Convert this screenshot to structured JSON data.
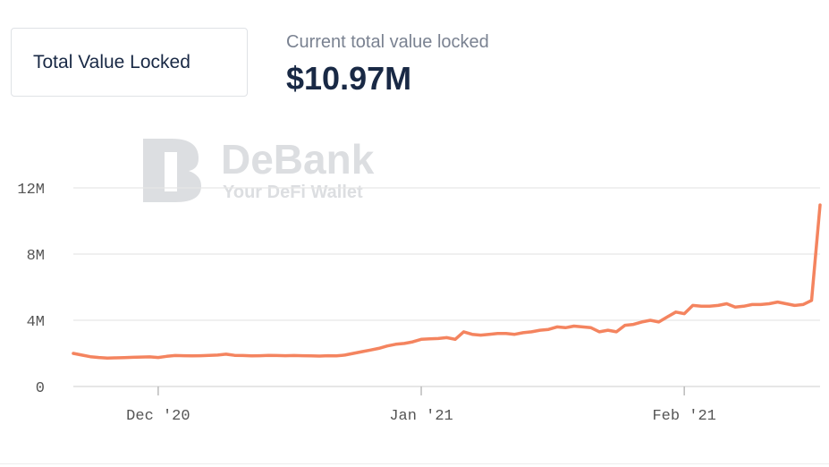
{
  "tab": {
    "label": "Total Value Locked"
  },
  "header": {
    "subtitle": "Current total value locked",
    "value": "$10.97M"
  },
  "watermark": {
    "brand": "DeBank",
    "tagline": "Your DeFi Wallet",
    "logo_icon": "debank-logo-icon",
    "color": "#dcdee1"
  },
  "chart_data": {
    "type": "line",
    "title": "",
    "xlabel": "",
    "ylabel": "",
    "color": "#f4845f",
    "grid": "horizontal",
    "y_ticks": [
      {
        "value": 0,
        "label": "0"
      },
      {
        "value": 4000000,
        "label": "4M"
      },
      {
        "value": 8000000,
        "label": "8M"
      },
      {
        "value": 12000000,
        "label": "12M"
      }
    ],
    "ylim": [
      0,
      12000000
    ],
    "x_ticks": [
      {
        "date": "2020-12-01",
        "label": "Dec '20"
      },
      {
        "date": "2021-01-01",
        "label": "Jan '21"
      },
      {
        "date": "2021-02-01",
        "label": "Feb '21"
      }
    ],
    "xlim": [
      "2020-11-21",
      "2021-02-17"
    ],
    "series": [
      {
        "values": [
          [
            "2020-11-21",
            2.0
          ],
          [
            "2020-11-22",
            1.9
          ],
          [
            "2020-11-23",
            1.8
          ],
          [
            "2020-11-24",
            1.75
          ],
          [
            "2020-11-25",
            1.72
          ],
          [
            "2020-11-26",
            1.73
          ],
          [
            "2020-11-27",
            1.74
          ],
          [
            "2020-11-28",
            1.76
          ],
          [
            "2020-11-29",
            1.78
          ],
          [
            "2020-11-30",
            1.79
          ],
          [
            "2020-12-01",
            1.75
          ],
          [
            "2020-12-02",
            1.82
          ],
          [
            "2020-12-03",
            1.87
          ],
          [
            "2020-12-04",
            1.86
          ],
          [
            "2020-12-05",
            1.85
          ],
          [
            "2020-12-06",
            1.86
          ],
          [
            "2020-12-07",
            1.88
          ],
          [
            "2020-12-08",
            1.9
          ],
          [
            "2020-12-09",
            1.95
          ],
          [
            "2020-12-10",
            1.88
          ],
          [
            "2020-12-11",
            1.87
          ],
          [
            "2020-12-12",
            1.85
          ],
          [
            "2020-12-13",
            1.86
          ],
          [
            "2020-12-14",
            1.88
          ],
          [
            "2020-12-15",
            1.87
          ],
          [
            "2020-12-16",
            1.86
          ],
          [
            "2020-12-17",
            1.87
          ],
          [
            "2020-12-18",
            1.86
          ],
          [
            "2020-12-19",
            1.85
          ],
          [
            "2020-12-20",
            1.84
          ],
          [
            "2020-12-21",
            1.86
          ],
          [
            "2020-12-22",
            1.85
          ],
          [
            "2020-12-23",
            1.9
          ],
          [
            "2020-12-24",
            2.0
          ],
          [
            "2020-12-25",
            2.1
          ],
          [
            "2020-12-26",
            2.2
          ],
          [
            "2020-12-27",
            2.3
          ],
          [
            "2020-12-28",
            2.45
          ],
          [
            "2020-12-29",
            2.55
          ],
          [
            "2020-12-30",
            2.6
          ],
          [
            "2020-12-31",
            2.7
          ],
          [
            "2021-01-01",
            2.85
          ],
          [
            "2021-01-02",
            2.88
          ],
          [
            "2021-01-03",
            2.9
          ],
          [
            "2021-01-04",
            2.95
          ],
          [
            "2021-01-05",
            2.85
          ],
          [
            "2021-01-06",
            3.3
          ],
          [
            "2021-01-07",
            3.15
          ],
          [
            "2021-01-08",
            3.1
          ],
          [
            "2021-01-09",
            3.15
          ],
          [
            "2021-01-10",
            3.2
          ],
          [
            "2021-01-11",
            3.2
          ],
          [
            "2021-01-12",
            3.15
          ],
          [
            "2021-01-13",
            3.25
          ],
          [
            "2021-01-14",
            3.3
          ],
          [
            "2021-01-15",
            3.4
          ],
          [
            "2021-01-16",
            3.45
          ],
          [
            "2021-01-17",
            3.6
          ],
          [
            "2021-01-18",
            3.55
          ],
          [
            "2021-01-19",
            3.65
          ],
          [
            "2021-01-20",
            3.6
          ],
          [
            "2021-01-21",
            3.55
          ],
          [
            "2021-01-22",
            3.3
          ],
          [
            "2021-01-23",
            3.4
          ],
          [
            "2021-01-24",
            3.3
          ],
          [
            "2021-01-25",
            3.7
          ],
          [
            "2021-01-26",
            3.75
          ],
          [
            "2021-01-27",
            3.9
          ],
          [
            "2021-01-28",
            4.0
          ],
          [
            "2021-01-29",
            3.9
          ],
          [
            "2021-01-30",
            4.2
          ],
          [
            "2021-01-31",
            4.5
          ],
          [
            "2021-02-01",
            4.4
          ],
          [
            "2021-02-02",
            4.9
          ],
          [
            "2021-02-03",
            4.85
          ],
          [
            "2021-02-04",
            4.85
          ],
          [
            "2021-02-05",
            4.9
          ],
          [
            "2021-02-06",
            5.0
          ],
          [
            "2021-02-07",
            4.8
          ],
          [
            "2021-02-08",
            4.85
          ],
          [
            "2021-02-09",
            4.95
          ],
          [
            "2021-02-10",
            4.95
          ],
          [
            "2021-02-11",
            5.0
          ],
          [
            "2021-02-12",
            5.1
          ],
          [
            "2021-02-13",
            5.0
          ],
          [
            "2021-02-14",
            4.9
          ],
          [
            "2021-02-15",
            4.95
          ],
          [
            "2021-02-16",
            5.2
          ],
          [
            "2021-02-17",
            10.97
          ]
        ]
      }
    ]
  }
}
